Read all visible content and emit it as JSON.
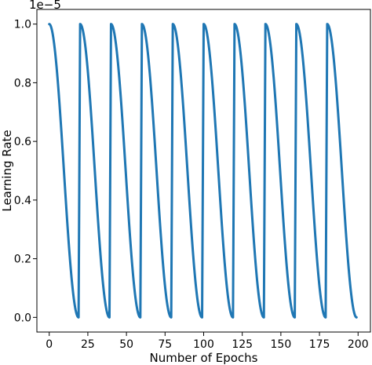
{
  "chart_data": {
    "type": "line",
    "xlabel": "Number of Epochs",
    "ylabel": "Learning Rate",
    "y_offset_text": "1e−5",
    "xlim": [
      -8,
      208
    ],
    "ylim": [
      -0.05,
      1.05
    ],
    "xticks": [
      0,
      25,
      50,
      75,
      100,
      125,
      150,
      175,
      200
    ],
    "xtick_labels": [
      "0",
      "25",
      "50",
      "75",
      "100",
      "125",
      "150",
      "175",
      "200"
    ],
    "yticks": [
      0.0,
      0.2,
      0.4,
      0.6,
      0.8,
      1.0
    ],
    "ytick_labels": [
      "0.0",
      "0.2",
      "0.4",
      "0.6",
      "0.8",
      "1.0"
    ],
    "grid": false,
    "line_color": "#1f77b4",
    "schedule": {
      "shape": "cosine annealing with warm restarts",
      "cycle_length_epochs": 20,
      "num_cycles": 10,
      "start_epoch": 0,
      "end_epoch": 199,
      "max_value": 1.0,
      "min_value": 0.0
    }
  }
}
